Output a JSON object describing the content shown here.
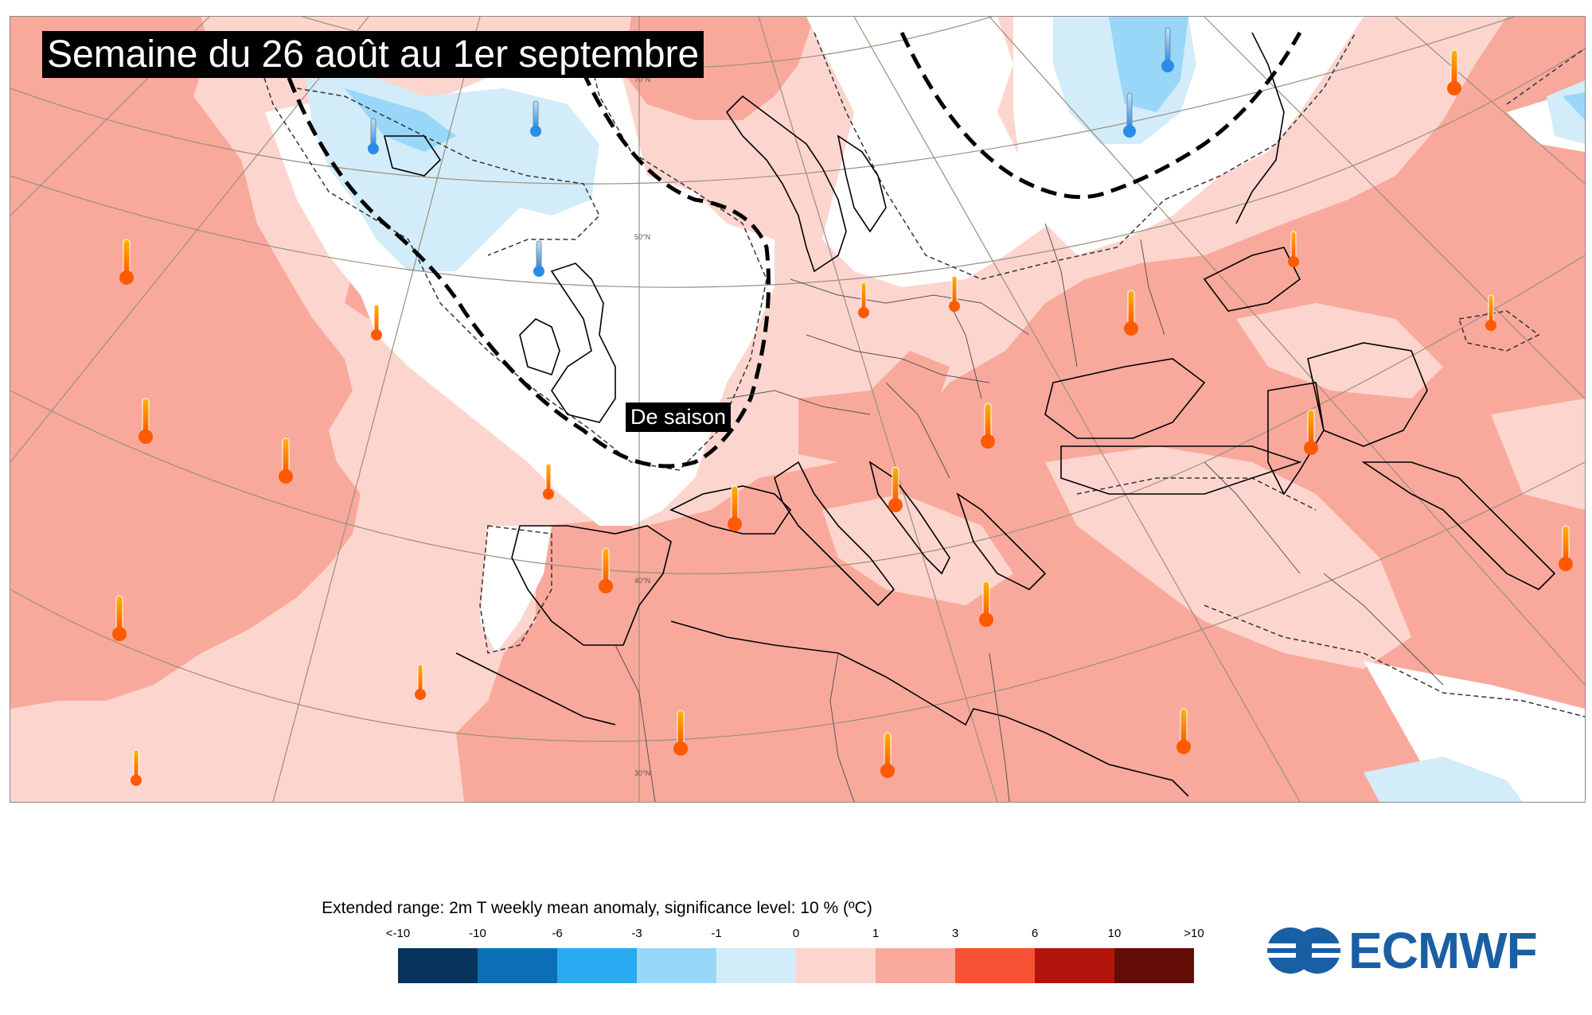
{
  "map": {
    "title": "Semaine du 26 août au 1er septembre",
    "region_label": "De saison",
    "lat_labels": [
      "70°N",
      "50°N",
      "40°N",
      "30°N"
    ]
  },
  "legend": {
    "title": "Extended range: 2m T weekly mean anomaly, significance level: 10 % (ºC)",
    "ticks": [
      "<-10",
      "-10",
      "-6",
      "-3",
      "-1",
      "0",
      "1",
      "3",
      "6",
      "10",
      ">10"
    ],
    "colors": [
      "#06345c",
      "#0a6fb5",
      "#2aaaf0",
      "#99d7f8",
      "#d2ecf9",
      "#fdd5cf",
      "#f9a99c",
      "#f75233",
      "#b3150c",
      "#640c06"
    ]
  },
  "logo": {
    "text": "ECMWF"
  },
  "icons": {
    "warm": "thermometer-warm-icon",
    "cold": "thermometer-cold-icon"
  },
  "colors": {
    "anom_0_1": "#fdd5cf",
    "anom_1_3": "#f9a99c",
    "neg_1_0": "#d2ecf9",
    "neg_3_1": "#99d7f8",
    "neutral": "#ffffff"
  }
}
